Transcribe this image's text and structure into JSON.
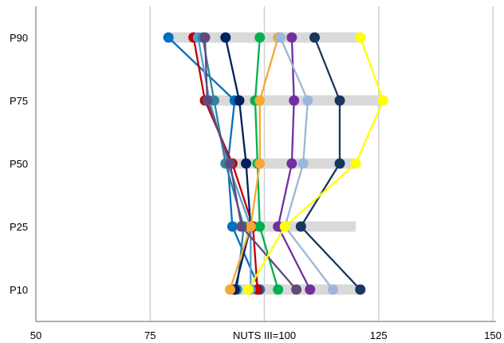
{
  "chart_data": {
    "type": "line",
    "orientation": "horizontal-dot-plot",
    "title": "",
    "xlabel": "NUTS III=100",
    "ylabel": "",
    "xlim": [
      50,
      150
    ],
    "x_ticks": [
      "50",
      "75",
      "NUTS III=100",
      "125",
      "150"
    ],
    "x_tick_values": [
      50,
      75,
      100,
      125,
      150
    ],
    "categories": [
      "P90",
      "P75",
      "P50",
      "P25",
      "P10"
    ],
    "grid": "vertical",
    "legend": "none",
    "range_bars": {
      "color": "#d9d9d9",
      "ranges": [
        [
          79,
          121
        ],
        [
          87,
          126
        ],
        [
          91,
          120
        ],
        [
          93,
          120
        ],
        [
          92,
          121
        ]
      ]
    },
    "series": [
      {
        "color": "#0070c0",
        "values": [
          79,
          93.5,
          92,
          93,
          99
        ]
      },
      {
        "color": "#c00000",
        "values": [
          84.5,
          87,
          93,
          97.5,
          98.5
        ]
      },
      {
        "color": "#5b9bd5",
        "values": [
          85.5,
          88,
          92,
          97,
          97
        ]
      },
      {
        "color": "#31859c",
        "values": [
          86.5,
          89,
          91.5,
          95.5,
          94
        ]
      },
      {
        "color": "#002060",
        "values": [
          91.5,
          94.5,
          96,
          97,
          93.5
        ]
      },
      {
        "color": "#00b050",
        "values": [
          99,
          98,
          98.5,
          99,
          103
        ]
      },
      {
        "color": "#f4a933",
        "values": [
          103,
          99,
          99,
          97,
          92.5
        ]
      },
      {
        "color": "#7030a0",
        "values": [
          106,
          106.5,
          106,
          103,
          110
        ]
      },
      {
        "color": "#604a7b",
        "values": [
          87,
          87.5,
          92.5,
          95,
          107
        ]
      },
      {
        "color": "#9bb7d9",
        "values": [
          103.5,
          109.5,
          108.5,
          104.5,
          115
        ]
      },
      {
        "color": "#17375e",
        "values": [
          111,
          116.5,
          116.5,
          108,
          121
        ]
      },
      {
        "color": "#ffff00",
        "values": [
          121,
          126,
          120,
          104.5,
          96.5
        ]
      }
    ]
  }
}
